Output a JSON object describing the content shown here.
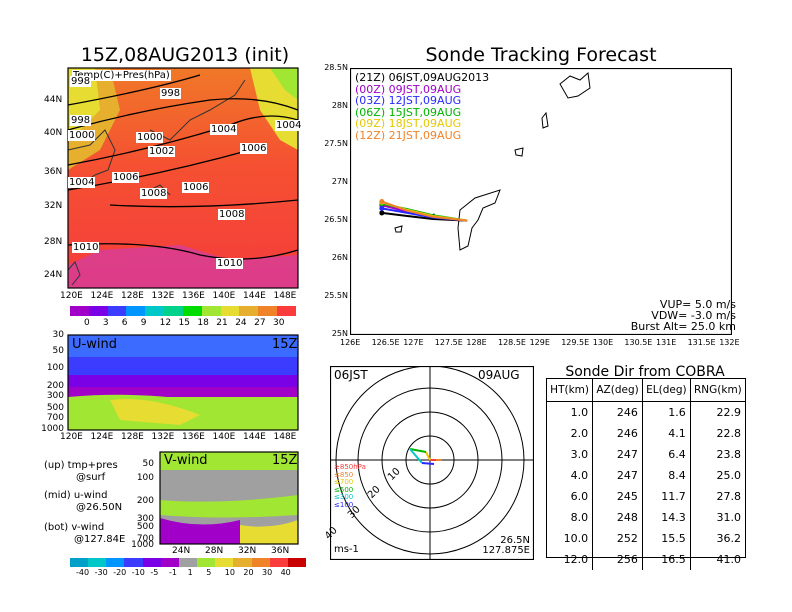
{
  "left": {
    "map_title": "15Z,08AUG2013 (init)",
    "map_label": "Temp(C)+Pres(hPa)",
    "lat_ticks": [
      "44N",
      "40N",
      "36N",
      "32N",
      "28N",
      "24N"
    ],
    "lon_ticks": [
      "120E",
      "124E",
      "128E",
      "132E",
      "136E",
      "140E",
      "144E",
      "148E"
    ],
    "isobars": [
      "998",
      "998",
      "998",
      "1000",
      "1000",
      "1002",
      "1004",
      "1004",
      "1004",
      "1006",
      "1006",
      "1006",
      "1008",
      "1008",
      "1010",
      "1010"
    ],
    "temp_scale": [
      "0",
      "3",
      "6",
      "9",
      "12",
      "15",
      "18",
      "21",
      "24",
      "27",
      "30"
    ],
    "temp_colors": [
      "#a000c8",
      "#7a00e6",
      "#3c3cff",
      "#0096ff",
      "#00c8c8",
      "#00d28c",
      "#00dc00",
      "#a0e632",
      "#e6dc32",
      "#e6af2d",
      "#f08228",
      "#fa3c3c"
    ],
    "u_label": "U-wind",
    "u_time": "15Z",
    "v_label": "V-wind",
    "v_time": "15Z",
    "pres_ticks": [
      "30",
      "50",
      "100",
      "200",
      "300",
      "500",
      "700",
      "1000"
    ],
    "u_lon_ticks": [
      "120E",
      "124E",
      "128E",
      "132E",
      "136E",
      "140E",
      "144E",
      "148E"
    ],
    "v_lat_ticks": [
      "24N",
      "28N",
      "32N",
      "36N"
    ],
    "legend_up": "(up) tmp+pres",
    "legend_up2": "@surf",
    "legend_mid": "(mid) u-wind",
    "legend_mid2": "@26.50N",
    "legend_bot": "(bot) v-wind",
    "legend_bot2": "@127.84E",
    "wind_scale": [
      "-40",
      "-30",
      "-20",
      "-10",
      "-5",
      "-1",
      "1",
      "5",
      "10",
      "20",
      "30",
      "40"
    ],
    "wind_colors": [
      "#00a0c8",
      "#00c8c8",
      "#0096ff",
      "#3c3cff",
      "#7a00e6",
      "#a000c8",
      "#a0a0a0",
      "#a0e632",
      "#e6dc32",
      "#e6af2d",
      "#f08228",
      "#fa3c3c",
      "#c80000"
    ]
  },
  "track": {
    "title": "Sonde Tracking Forecast",
    "lat_ticks": [
      "28.5N",
      "28N",
      "27.5N",
      "27N",
      "26.5N",
      "26N",
      "25.5N",
      "25N"
    ],
    "lon_ticks": [
      "126E",
      "126.5E",
      "127E",
      "127.5E",
      "128E",
      "128.5E",
      "129E",
      "129.5E",
      "130E",
      "130.5E",
      "131E",
      "131.5E",
      "132E"
    ],
    "legend": [
      {
        "time": "(21Z) 06JST,09AUG2013",
        "color": "#000000"
      },
      {
        "time": "(00Z) 09JST,09AUG",
        "color": "#a000c8"
      },
      {
        "time": "(03Z) 12JST,09AUG",
        "color": "#2828ff"
      },
      {
        "time": "(06Z) 15JST,09AUG",
        "color": "#00b400"
      },
      {
        "time": "(09Z) 18JST,09AUG",
        "color": "#e6c800"
      },
      {
        "time": "(12Z) 21JST,09AUG",
        "color": "#f08228"
      }
    ],
    "vup": "VUP= 5.0 m/s",
    "vdw": "VDW= -3.0 m/s",
    "burst": "Burst Alt= 25.0 km"
  },
  "polar": {
    "time_left": "06JST",
    "time_right": "09AUG",
    "rings": [
      "10",
      "20",
      "30",
      "40"
    ],
    "levels": [
      {
        "label": "≥850hPa",
        "color": "#fa3c3c"
      },
      {
        "label": "≤850",
        "color": "#f08228"
      },
      {
        "label": "≤700",
        "color": "#e6c800"
      },
      {
        "label": "≤500",
        "color": "#00b400"
      },
      {
        "label": "≤300",
        "color": "#00c8c8"
      },
      {
        "label": "≤100",
        "color": "#2828ff"
      }
    ],
    "unit": "ms-1",
    "loc_lat": "26.5N",
    "loc_lon": "127.875E"
  },
  "table": {
    "title": "Sonde Dir from COBRA",
    "headers": [
      "HT(km)",
      "AZ(deg)",
      "EL(deg)",
      "RNG(km)"
    ],
    "rows": [
      [
        "1.0",
        "246",
        "1.6",
        "22.9"
      ],
      [
        "2.0",
        "246",
        "4.1",
        "22.8"
      ],
      [
        "3.0",
        "247",
        "6.4",
        "23.8"
      ],
      [
        "4.0",
        "247",
        "8.4",
        "25.0"
      ],
      [
        "6.0",
        "245",
        "11.7",
        "27.8"
      ],
      [
        "8.0",
        "248",
        "14.3",
        "31.0"
      ],
      [
        "10.0",
        "252",
        "15.5",
        "36.2"
      ],
      [
        "12.0",
        "256",
        "16.5",
        "41.0"
      ]
    ]
  },
  "chart_data": [
    {
      "type": "heatmap",
      "title": "15Z,08AUG2013 (init)",
      "subtitle": "Temp(C)+Pres(hPa)",
      "xlim": [
        120,
        150
      ],
      "ylim": [
        22,
        48
      ],
      "colorbar": [
        0,
        3,
        6,
        9,
        12,
        15,
        18,
        21,
        24,
        27,
        30
      ],
      "isobar_labels": [
        998,
        1000,
        1002,
        1004,
        1006,
        1008,
        1010
      ]
    },
    {
      "type": "heatmap",
      "title": "U-wind",
      "xlim": [
        120,
        150
      ],
      "pressure_levels": [
        30,
        50,
        100,
        200,
        300,
        500,
        700,
        1000
      ]
    },
    {
      "type": "heatmap",
      "title": "V-wind",
      "colorbar": [
        -40,
        -30,
        -20,
        -10,
        -5,
        -1,
        1,
        5,
        10,
        20,
        30,
        40
      ]
    },
    {
      "type": "line",
      "title": "Sonde Tracking Forecast",
      "xlim": [
        126,
        132
      ],
      "ylim": [
        25,
        28.5
      ],
      "series": [
        {
          "name": "(21Z) 06JST,09AUG2013",
          "x": [
            127.84,
            127.3,
            126.9,
            126.5
          ],
          "y": [
            26.5,
            26.52,
            26.56,
            26.6
          ]
        },
        {
          "name": "(00Z) 09JST,09AUG",
          "x": [
            127.84,
            127.3,
            126.9,
            126.5
          ],
          "y": [
            26.5,
            26.55,
            26.62,
            26.7
          ]
        },
        {
          "name": "(03Z) 12JST,09AUG",
          "x": [
            127.84,
            127.3,
            126.9,
            126.5
          ],
          "y": [
            26.5,
            26.54,
            26.6,
            26.66
          ]
        },
        {
          "name": "(06Z) 15JST,09AUG",
          "x": [
            127.84,
            127.3,
            126.9,
            126.5
          ],
          "y": [
            26.5,
            26.57,
            26.65,
            26.72
          ]
        },
        {
          "name": "(09Z) 18JST,09AUG",
          "x": [
            127.84,
            127.3,
            126.9,
            126.5
          ],
          "y": [
            26.5,
            26.56,
            26.64,
            26.74
          ]
        },
        {
          "name": "(12Z) 21JST,09AUG",
          "x": [
            127.84,
            127.3,
            126.9,
            126.5
          ],
          "y": [
            26.5,
            26.55,
            26.63,
            26.75
          ]
        }
      ]
    },
    {
      "type": "table",
      "title": "Sonde Dir from COBRA",
      "columns": [
        "HT(km)",
        "AZ(deg)",
        "EL(deg)",
        "RNG(km)"
      ],
      "rows": [
        [
          1.0,
          246,
          1.6,
          22.9
        ],
        [
          2.0,
          246,
          4.1,
          22.8
        ],
        [
          3.0,
          247,
          6.4,
          23.8
        ],
        [
          4.0,
          247,
          8.4,
          25.0
        ],
        [
          6.0,
          245,
          11.7,
          27.8
        ],
        [
          8.0,
          248,
          14.3,
          31.0
        ],
        [
          10.0,
          252,
          15.5,
          36.2
        ],
        [
          12.0,
          256,
          16.5,
          41.0
        ]
      ]
    }
  ]
}
